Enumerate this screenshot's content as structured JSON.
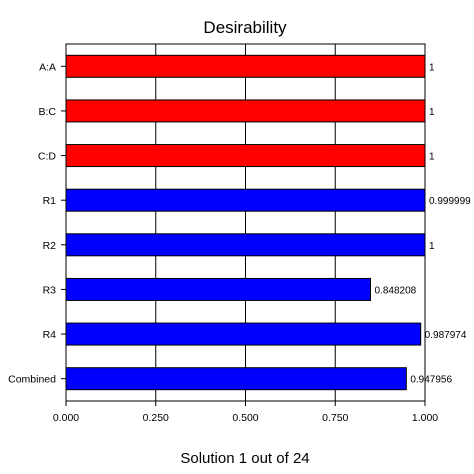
{
  "chart_data": {
    "type": "bar",
    "orientation": "horizontal",
    "title": "Desirability",
    "xlabel": "Solution 1 out of 24",
    "ylabel": "",
    "xlim": [
      0,
      1
    ],
    "grid": true,
    "x_ticks": [
      "0.000",
      "0.250",
      "0.500",
      "0.750",
      "1.000"
    ],
    "categories": [
      "A:A",
      "B:C",
      "C:D",
      "R1",
      "R2",
      "R3",
      "R4",
      "Combined"
    ],
    "values": [
      1,
      1,
      1,
      0.999999,
      1,
      0.848208,
      0.987974,
      0.947956
    ],
    "value_labels": [
      "1",
      "1",
      "1",
      "0.999999",
      "1",
      "0.848208",
      "0.987974",
      "0.947956"
    ],
    "colors": [
      "#ff0000",
      "#ff0000",
      "#ff0000",
      "#0000ff",
      "#0000ff",
      "#0000ff",
      "#0000ff",
      "#0000ff"
    ]
  }
}
